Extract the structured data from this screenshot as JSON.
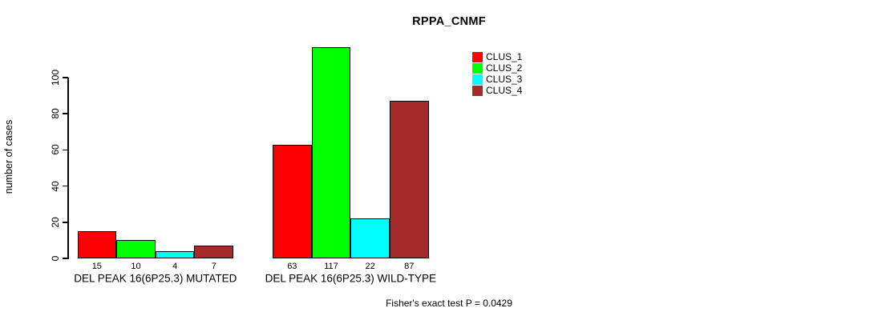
{
  "chart_data": {
    "type": "bar",
    "title": "RPPA_CNMF",
    "ylabel": "number of cases",
    "xlabel": "",
    "ylim": [
      0,
      117
    ],
    "yticks": [
      0,
      20,
      40,
      60,
      80,
      100
    ],
    "grid": false,
    "legend_position": "top-right-inside",
    "categories": [
      "DEL PEAK 16(6P25.3) MUTATED",
      "DEL PEAK 16(6P25.3) WILD-TYPE"
    ],
    "series": [
      {
        "name": "CLUS_1",
        "color": "#ff0000",
        "values": [
          15,
          63
        ]
      },
      {
        "name": "CLUS_2",
        "color": "#00ff00",
        "values": [
          10,
          117
        ]
      },
      {
        "name": "CLUS_3",
        "color": "#00ffff",
        "values": [
          4,
          22
        ]
      },
      {
        "name": "CLUS_4",
        "color": "#a52a2a",
        "values": [
          7,
          87
        ]
      }
    ],
    "bar_value_labels": {
      "DEL PEAK 16(6P25.3) MUTATED": [
        15,
        10,
        4,
        7
      ],
      "DEL PEAK 16(6P25.3) WILD-TYPE": [
        63,
        117,
        22,
        87
      ]
    },
    "annotation": "Fisher's exact test P = 0.0429"
  }
}
